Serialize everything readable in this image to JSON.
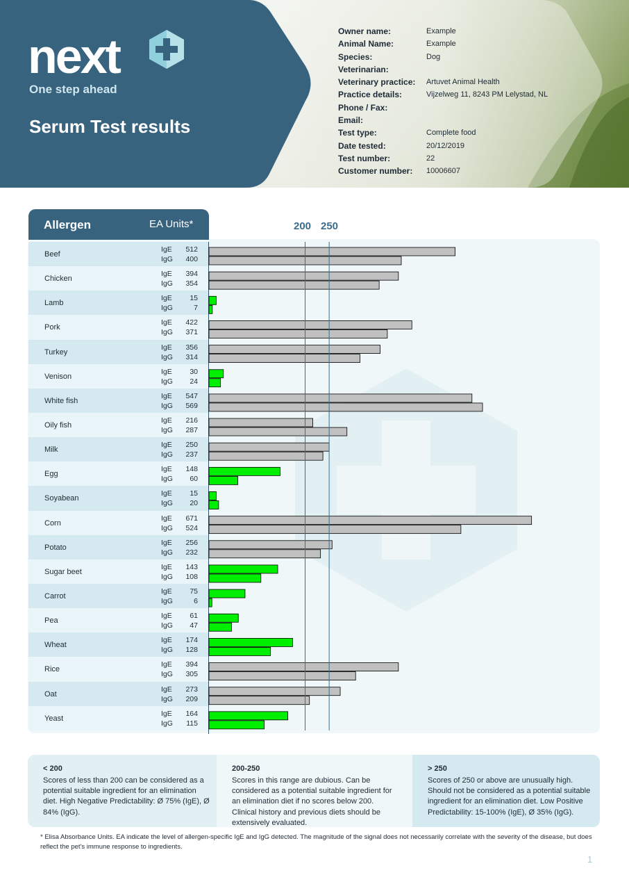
{
  "header": {
    "brand": "next",
    "tagline": "One step ahead",
    "title": "Serum Test results",
    "colors": {
      "panel": "#38637f",
      "accent": "#8fd0dc",
      "photo": "#c9d3bd"
    },
    "fields": [
      {
        "label": "Owner name:",
        "value": "Example"
      },
      {
        "label": "Animal Name:",
        "value": "Example"
      },
      {
        "label": "Species:",
        "value": "Dog"
      },
      {
        "label": "Veterinarian:",
        "value": ""
      },
      {
        "label": "Veterinary practice:",
        "value": "Artuvet Animal Health"
      },
      {
        "label": "Practice details:",
        "value": "Vijzelweg 11, 8243 PM Lelystad, NL"
      },
      {
        "label": "Phone / Fax:",
        "value": ""
      },
      {
        "label": "Email:",
        "value": ""
      },
      {
        "label": "Test type:",
        "value": "Complete food"
      },
      {
        "label": "Date tested:",
        "value": "20/12/2019"
      },
      {
        "label": "Test number:",
        "value": "22"
      },
      {
        "label": "Customer number:",
        "value": "10006607"
      }
    ]
  },
  "table": {
    "col_allergen": "Allergen",
    "col_units": "EA Units*",
    "label_ige": "IgE",
    "label_igg": "IgG"
  },
  "chart_data": {
    "type": "bar",
    "orientation": "horizontal",
    "categories": [
      "Beef",
      "Chicken",
      "Lamb",
      "Pork",
      "Turkey",
      "Venison",
      "White fish",
      "Oily fish",
      "Milk",
      "Egg",
      "Soyabean",
      "Corn",
      "Potato",
      "Sugar beet",
      "Carrot",
      "Pea",
      "Wheat",
      "Rice",
      "Oat",
      "Yeast"
    ],
    "series": [
      {
        "name": "IgE",
        "values": [
          512,
          394,
          15,
          422,
          356,
          30,
          547,
          216,
          250,
          148,
          15,
          671,
          256,
          143,
          75,
          61,
          174,
          394,
          273,
          164
        ]
      },
      {
        "name": "IgG",
        "values": [
          400,
          354,
          7,
          371,
          314,
          24,
          569,
          287,
          237,
          60,
          20,
          524,
          232,
          108,
          6,
          47,
          128,
          305,
          209,
          115
        ]
      }
    ],
    "thresholds": [
      200,
      250
    ],
    "threshold_labels": [
      "200",
      "250"
    ],
    "xlim": [
      0,
      720
    ],
    "colors": {
      "below_200": "#00ee00",
      "at_or_above_200": "#c0c0c0",
      "threshold_line": "#3b6c8c"
    }
  },
  "legend": [
    {
      "title": "< 200",
      "text": "Scores of less than 200 can be considered as a potential suitable ingredient for an elimination diet. High Negative Predictability: Ø 75% (IgE), Ø 84% (IgG).",
      "color": "#e2f0f4"
    },
    {
      "title": "200-250",
      "text": "Scores in this range are dubious. Can be considered as a potential suitable ingredient for an elimination diet if no scores below 200. Clinical history and previous diets should be extensively evaluated.",
      "color": "#eff7f9"
    },
    {
      "title": "> 250",
      "text": "Scores of 250 or above are unusually high. Should not be considered as a potential suitable ingredient for an elimination diet. Low Positive Predictability: 15-100% (IgE), Ø 35% (IgG).",
      "color": "#d5eaf0"
    }
  ],
  "footnote": "* Elisa Absorbance Units. EA indicate the level of allergen-specific IgE and IgG detected. The magnitude of the signal does not necessarily correlate with the severity of the disease, but does reflect the pet's immune response to ingredients.",
  "page_number": "1"
}
